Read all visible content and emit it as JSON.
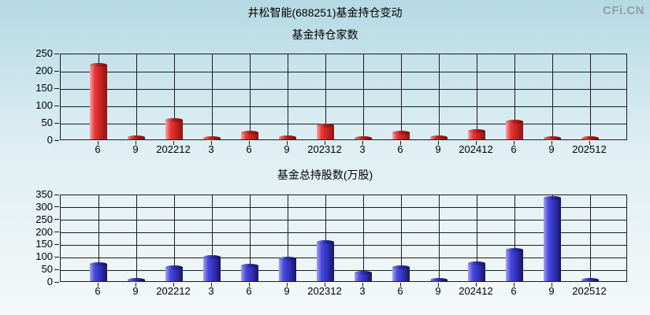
{
  "page": {
    "title": "井松智能(688251)基金持仓变动",
    "watermark": "CFi.CN",
    "bg_top": "#b5d9e4",
    "bg_mid": "#ddeef3",
    "bg_bottom": "#f5f8f8",
    "text_color": "#000000",
    "watermark_color": "#93a0a6"
  },
  "chart_data": [
    {
      "type": "bar",
      "title": "基金持仓家数",
      "categories": [
        "6",
        "9",
        "202212",
        "3",
        "6",
        "9",
        "202312",
        "3",
        "6",
        "9",
        "202412",
        "6",
        "9",
        "202512"
      ],
      "values": [
        215,
        7,
        57,
        5,
        20,
        6,
        41,
        5,
        20,
        6,
        24,
        53,
        4,
        4
      ],
      "xlabel": "",
      "ylabel": "",
      "ylim": [
        0,
        250
      ],
      "yticks": [
        0,
        50,
        100,
        150,
        200,
        250
      ],
      "grid": true,
      "legend": "none",
      "grid_color": "#1c1c1c",
      "bar_colors": [
        "#f9a8a8",
        "#ee3535",
        "#c82424",
        "#8e1414"
      ],
      "cap_colors": [
        "#e08585",
        "#b81f1f",
        "#6f0c0c"
      ]
    },
    {
      "type": "bar",
      "title": "基金总持股数(万股)",
      "categories": [
        "6",
        "9",
        "202212",
        "3",
        "6",
        "9",
        "202312",
        "3",
        "6",
        "9",
        "202412",
        "6",
        "9",
        "202512"
      ],
      "values": [
        70,
        3,
        56,
        97,
        62,
        91,
        159,
        34,
        56,
        4,
        73,
        126,
        335,
        4
      ],
      "xlabel": "",
      "ylabel": "",
      "ylim": [
        0,
        350
      ],
      "yticks": [
        0,
        50,
        100,
        150,
        200,
        250,
        300,
        350
      ],
      "grid": true,
      "legend": "none",
      "grid_color": "#1c1c1c",
      "bar_colors": [
        "#a2a2f2",
        "#4848de",
        "#3232bd",
        "#16165e"
      ],
      "cap_colors": [
        "#8585dd",
        "#2d2db0",
        "#10104f"
      ]
    }
  ]
}
